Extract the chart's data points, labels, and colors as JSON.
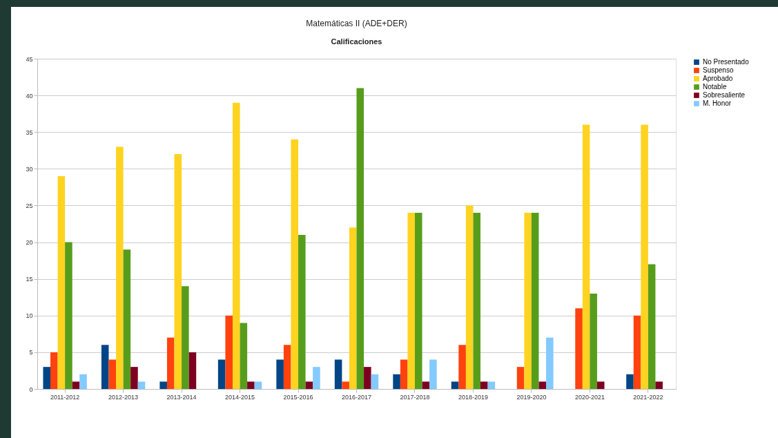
{
  "chart_data": {
    "type": "bar",
    "title": "Matemáticas II  (ADE+DER)",
    "subtitle": "Calificaciones",
    "categories": [
      "2011-2012",
      "2012-2013",
      "2013-2014",
      "2014-2015",
      "2015-2016",
      "2016-2017",
      "2017-2018",
      "2018-2019",
      "2019-2020",
      "2020-2021",
      "2021-2022"
    ],
    "series": [
      {
        "name": "No Presentado",
        "color": "#004586",
        "values": [
          3,
          6,
          1,
          4,
          4,
          4,
          2,
          1,
          0,
          0,
          2
        ]
      },
      {
        "name": "Suspenso",
        "color": "#ff420e",
        "values": [
          5,
          4,
          7,
          10,
          6,
          1,
          4,
          6,
          3,
          11,
          10
        ]
      },
      {
        "name": "Aprobado",
        "color": "#ffd320",
        "values": [
          29,
          33,
          32,
          39,
          34,
          22,
          24,
          25,
          24,
          36,
          36
        ]
      },
      {
        "name": "Notable",
        "color": "#579d1c",
        "values": [
          20,
          19,
          14,
          9,
          21,
          41,
          24,
          24,
          24,
          13,
          17
        ]
      },
      {
        "name": "Sobresaliente",
        "color": "#7e0021",
        "values": [
          1,
          3,
          5,
          1,
          1,
          3,
          1,
          1,
          1,
          1,
          1
        ]
      },
      {
        "name": "M. Honor",
        "color": "#83caff",
        "values": [
          2,
          1,
          0,
          1,
          3,
          2,
          4,
          1,
          7,
          0,
          0
        ]
      }
    ],
    "ylim": [
      0,
      45
    ],
    "yticks": [
      0,
      5,
      10,
      15,
      20,
      25,
      30,
      35,
      40,
      45
    ],
    "grid": "y",
    "legend": "right"
  }
}
